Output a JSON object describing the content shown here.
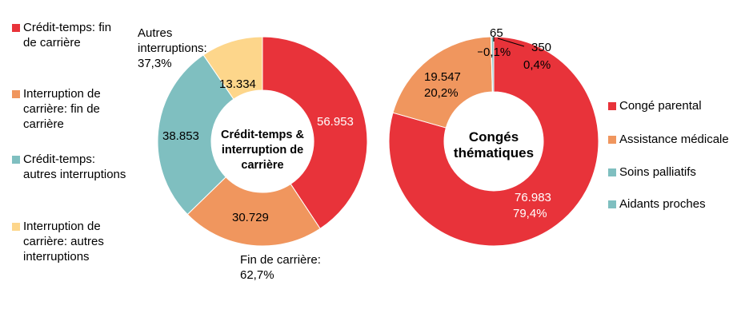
{
  "chart_data": [
    {
      "type": "donut",
      "title": "Crédit-temps & interruption de carrière",
      "categories": [
        "Crédit-temps: fin de carrière",
        "Interruption de carrière: fin de carrière",
        "Crédit-temps: autres interruptions",
        "Interruption de carrière: autres interruptions"
      ],
      "values": [
        56953,
        30729,
        38853,
        13334
      ],
      "value_labels": [
        "56.953",
        "30.729",
        "38.853",
        "13.334"
      ],
      "colors": [
        "#e8333a",
        "#f0965e",
        "#7fbfc0",
        "#fdd68b"
      ],
      "annotations": [
        "Autres interruptions: 37,3%",
        "Fin de carrière: 62,7%"
      ]
    },
    {
      "type": "donut",
      "title": "Congés thématiques",
      "categories": [
        "Congé parental",
        "Assistance médicale",
        "Soins palliatifs",
        "Aidants proches"
      ],
      "values": [
        76983,
        19547,
        65,
        350
      ],
      "value_labels": [
        "76.983",
        "19.547",
        "65",
        "350"
      ],
      "percent_labels": [
        "79,4%",
        "20,2%",
        "0,1%",
        "0,4%"
      ],
      "colors": [
        "#e8333a",
        "#f0965e",
        "#7fbfc0",
        "#7fbfc0"
      ]
    }
  ]
}
